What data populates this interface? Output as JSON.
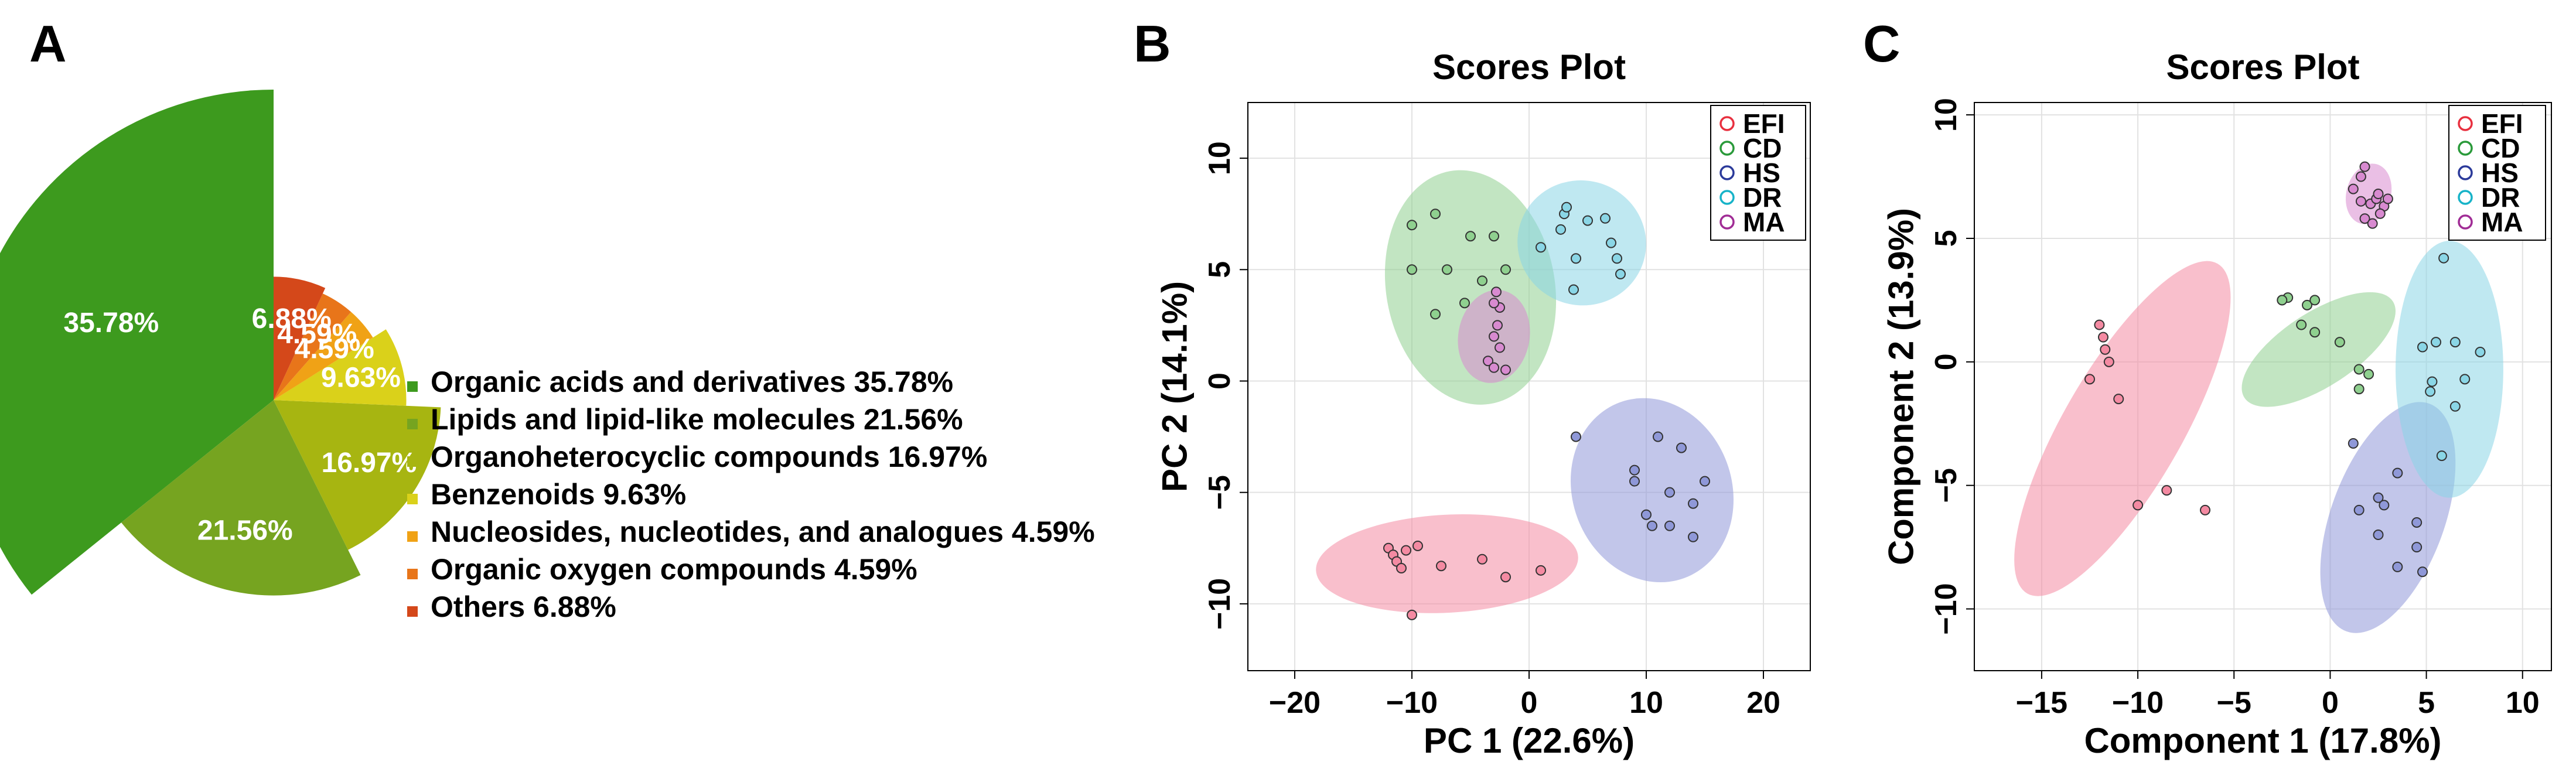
{
  "panels": {
    "a": "A",
    "b": "B",
    "c": "C"
  },
  "chart_data": [
    {
      "type": "pie",
      "id": "A",
      "title": "",
      "slices": [
        {
          "name": "Organic acids and derivatives",
          "value": 35.78,
          "label": "35.78%",
          "legend": "Organic acids and derivatives 35.78%",
          "color": "#3d9a1e"
        },
        {
          "name": "Lipids and lipid-like molecules",
          "value": 21.56,
          "label": "21.56%",
          "legend": "Lipids and lipid-like molecules 21.56%",
          "color": "#76a420"
        },
        {
          "name": "Organoheterocyclic compounds",
          "value": 16.97,
          "label": "16.97%",
          "legend": "Organoheterocyclic compounds 16.97%",
          "color": "#a7b511"
        },
        {
          "name": "Benzenoids",
          "value": 9.63,
          "label": "9.63%",
          "legend": "Benzenoids 9.63%",
          "color": "#dad11a"
        },
        {
          "name": "Nucleosides, nucleotides, and analogues",
          "value": 4.59,
          "label": "4.59%",
          "legend": "Nucleosides, nucleotides, and analogues 4.59%",
          "color": "#f0a216"
        },
        {
          "name": "Organic oxygen compounds",
          "value": 4.59,
          "label": "4.59%",
          "legend": "Organic oxygen compounds 4.59%",
          "color": "#e8751a"
        },
        {
          "name": "Others",
          "value": 6.88,
          "label": "6.88%",
          "legend": "Others 6.88%",
          "color": "#d4481a"
        }
      ]
    },
    {
      "type": "scatter",
      "id": "B",
      "title": "Scores Plot",
      "xlabel": "PC 1  (22.6%)",
      "ylabel": "PC 2  (14.1%)",
      "xlim": [
        -24,
        24
      ],
      "ylim": [
        -13,
        12.5
      ],
      "xticks": [
        -20,
        -10,
        0,
        10,
        20
      ],
      "yticks": [
        -10,
        -5,
        0,
        5,
        10
      ],
      "legend_position": "top-right",
      "groups": [
        {
          "name": "EFI",
          "color": "#e8303f",
          "fill": "#f48aa2",
          "ellipse": {
            "cx": -7,
            "cy": -8.2,
            "rx": 11.2,
            "ry": 2.2,
            "angle": 3
          },
          "points": [
            [
              -12,
              -7.5
            ],
            [
              -11.6,
              -7.8
            ],
            [
              -11.3,
              -8.1
            ],
            [
              -10.9,
              -8.4
            ],
            [
              -10.5,
              -7.6
            ],
            [
              -9.5,
              -7.4
            ],
            [
              -10,
              -10.5
            ],
            [
              -7.5,
              -8.3
            ],
            [
              -4,
              -8
            ],
            [
              -2,
              -8.8
            ],
            [
              1,
              -8.5
            ]
          ]
        },
        {
          "name": "CD",
          "color": "#2a9a3a",
          "fill": "#8fd08f",
          "ellipse": {
            "cx": -5,
            "cy": 4.2,
            "rx": 7.2,
            "ry": 5.3,
            "angle": 10
          },
          "points": [
            [
              -10,
              7
            ],
            [
              -8,
              7.5
            ],
            [
              -10,
              5
            ],
            [
              -7,
              5
            ],
            [
              -5,
              6.5
            ],
            [
              -3,
              6.5
            ],
            [
              -8,
              3
            ],
            [
              -5.5,
              3.5
            ],
            [
              -4,
              4.5
            ],
            [
              -2,
              5
            ]
          ]
        },
        {
          "name": "HS",
          "color": "#2b3a9a",
          "fill": "#8f98d8",
          "ellipse": {
            "cx": 10.5,
            "cy": -4.9,
            "rx": 6.8,
            "ry": 4.2,
            "angle": 20
          },
          "points": [
            [
              4,
              -2.5
            ],
            [
              9,
              -4
            ],
            [
              11,
              -2.5
            ],
            [
              9,
              -4.5
            ],
            [
              13,
              -3
            ],
            [
              12,
              -5
            ],
            [
              14,
              -5.5
            ],
            [
              15,
              -4.5
            ],
            [
              10,
              -6
            ],
            [
              10.5,
              -6.5
            ],
            [
              12,
              -6.5
            ],
            [
              14,
              -7
            ]
          ]
        },
        {
          "name": "DR",
          "color": "#17b3c8",
          "fill": "#8ad6e6",
          "ellipse": {
            "cx": 4.5,
            "cy": 6.2,
            "rx": 5.5,
            "ry": 2.8,
            "angle": -15
          },
          "points": [
            [
              1,
              6
            ],
            [
              2.7,
              6.8
            ],
            [
              3,
              7.5
            ],
            [
              3.2,
              7.8
            ],
            [
              5,
              7.2
            ],
            [
              6.5,
              7.3
            ],
            [
              7,
              6.2
            ],
            [
              7.5,
              5.5
            ],
            [
              4,
              5.5
            ],
            [
              7.8,
              4.8
            ],
            [
              3.8,
              4.1
            ]
          ]
        },
        {
          "name": "MA",
          "color": "#a02c95",
          "fill": "#d88ad0",
          "ellipse": {
            "cx": -3,
            "cy": 2,
            "rx": 4,
            "ry": 1.6,
            "angle": 80
          },
          "points": [
            [
              -2.8,
              4
            ],
            [
              -2.5,
              3.3
            ],
            [
              -3,
              3.5
            ],
            [
              -2.7,
              2.5
            ],
            [
              -3,
              2
            ],
            [
              -2.5,
              1.5
            ],
            [
              -3.5,
              0.9
            ],
            [
              -3,
              0.6
            ],
            [
              -2,
              0.5
            ]
          ]
        }
      ]
    },
    {
      "type": "scatter",
      "id": "C",
      "title": "Scores Plot",
      "xlabel": "Component 1 (17.8%)",
      "ylabel": "Component 2  (13.9%)",
      "xlim": [
        -18.5,
        11.5
      ],
      "ylim": [
        -12.5,
        10.5
      ],
      "xticks": [
        -15,
        -10,
        -5,
        0,
        5,
        10
      ],
      "yticks": [
        -10,
        -5,
        0,
        5,
        10
      ],
      "legend_position": "top-right",
      "groups": [
        {
          "name": "EFI",
          "color": "#e8303f",
          "fill": "#f48aa2",
          "ellipse": {
            "cx": -10.8,
            "cy": -2.7,
            "rx": 9.9,
            "ry": 2.4,
            "angle": 60
          },
          "points": [
            [
              -12,
              1.5
            ],
            [
              -11.8,
              1
            ],
            [
              -11.7,
              0.5
            ],
            [
              -11.5,
              0
            ],
            [
              -12.5,
              -0.7
            ],
            [
              -11,
              -1.5
            ],
            [
              -10,
              -5.8
            ],
            [
              -8.5,
              -5.2
            ],
            [
              -6.5,
              -6
            ]
          ]
        },
        {
          "name": "CD",
          "color": "#2a9a3a",
          "fill": "#8fd08f",
          "ellipse": {
            "cx": -0.6,
            "cy": 0.5,
            "rx": 4.6,
            "ry": 1.5,
            "angle": 33
          },
          "points": [
            [
              -2.5,
              2.5
            ],
            [
              -2.2,
              2.6
            ],
            [
              -1.2,
              2.3
            ],
            [
              -0.8,
              2.5
            ],
            [
              -1.5,
              1.5
            ],
            [
              -0.8,
              1.2
            ],
            [
              0.5,
              0.8
            ],
            [
              1.5,
              -0.3
            ],
            [
              2,
              -0.5
            ],
            [
              1.5,
              -1.1
            ],
            [
              -2.5,
              2.5
            ]
          ]
        },
        {
          "name": "HS",
          "color": "#2b3a9a",
          "fill": "#8f98d8",
          "ellipse": {
            "cx": 3,
            "cy": -6.3,
            "rx": 6.3,
            "ry": 2.3,
            "angle": 70
          },
          "points": [
            [
              1.2,
              -3.3
            ],
            [
              3.5,
              -4.5
            ],
            [
              2.5,
              -5.5
            ],
            [
              2.8,
              -5.8
            ],
            [
              1.5,
              -6
            ],
            [
              2.5,
              -7
            ],
            [
              4.5,
              -6.5
            ],
            [
              4.5,
              -7.5
            ],
            [
              3.5,
              -8.3
            ],
            [
              4.8,
              -8.5
            ]
          ]
        },
        {
          "name": "DR",
          "color": "#17b3c8",
          "fill": "#8ad6e6",
          "ellipse": {
            "cx": 6.2,
            "cy": -0.3,
            "rx": 2.8,
            "ry": 5.2,
            "angle": 0
          },
          "points": [
            [
              5.9,
              4.2
            ],
            [
              4.8,
              0.6
            ],
            [
              5.5,
              0.8
            ],
            [
              6.5,
              0.8
            ],
            [
              7.8,
              0.4
            ],
            [
              5.3,
              -0.8
            ],
            [
              5.2,
              -1.2
            ],
            [
              7,
              -0.7
            ],
            [
              6.5,
              -1.8
            ],
            [
              5.8,
              -3.8
            ]
          ]
        },
        {
          "name": "MA",
          "color": "#a02c95",
          "fill": "#d88ad0",
          "ellipse": {
            "cx": 2,
            "cy": 6.8,
            "rx": 1.6,
            "ry": 0.9,
            "angle": 75
          },
          "points": [
            [
              1.8,
              7.9
            ],
            [
              1.6,
              7.5
            ],
            [
              1.2,
              7
            ],
            [
              1.6,
              6.5
            ],
            [
              2.1,
              6.4
            ],
            [
              2.4,
              6.6
            ],
            [
              2.8,
              6.3
            ],
            [
              2.5,
              6.8
            ],
            [
              3,
              6.6
            ],
            [
              2.6,
              6
            ],
            [
              1.8,
              5.8
            ],
            [
              2.2,
              5.6
            ]
          ]
        }
      ]
    }
  ]
}
